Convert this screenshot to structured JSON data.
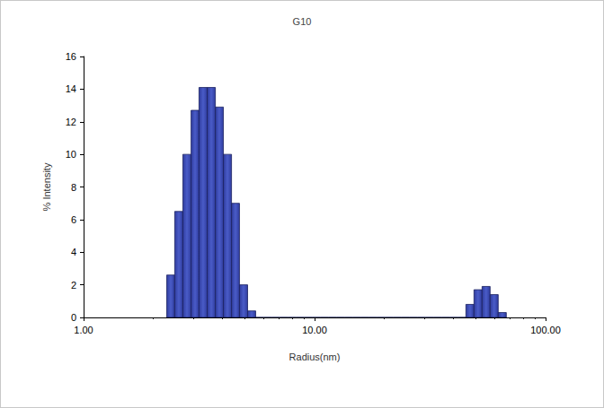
{
  "chart_data": {
    "type": "histogram",
    "title": "G10",
    "x_label": "Radius(nm)",
    "y_label": "% Intensity",
    "log": "x",
    "grid": false,
    "color": "#2f3c9e",
    "bins": [
      2.29,
      2.48,
      2.69,
      2.92,
      3.16,
      3.43,
      3.72,
      4.03,
      4.37,
      4.73,
      5.13,
      5.56,
      6.03,
      6.53,
      7.08,
      7.67,
      8.32,
      9.02,
      9.77,
      10.59,
      11.48,
      12.45,
      13.49,
      14.62,
      15.85,
      17.18,
      18.62,
      20.18,
      21.88,
      23.71,
      25.7,
      27.86,
      30.2,
      32.73,
      35.48,
      38.46,
      41.69,
      45.19,
      48.98,
      53.09,
      57.54,
      62.37,
      67.61
    ],
    "values": [
      2.6,
      6.5,
      10,
      12.7,
      14.1,
      14.1,
      12.9,
      10,
      7,
      2,
      0.4,
      0,
      0,
      0,
      0,
      0,
      0,
      0,
      0,
      0,
      0,
      0,
      0,
      0,
      0,
      0,
      0,
      0,
      0,
      0,
      0,
      0,
      0,
      0,
      0,
      0,
      0,
      0.8,
      1.7,
      1.9,
      1.4,
      0.3
    ],
    "xlim": [
      1,
      100
    ],
    "xticks": [
      {
        "value": 1,
        "label": "1.00"
      },
      {
        "value": 10,
        "label": "10.00"
      },
      {
        "value": 100,
        "label": "100.00"
      }
    ],
    "ylim": [
      0,
      16
    ],
    "yticks": [
      0,
      2,
      4,
      6,
      8,
      10,
      12,
      14,
      16
    ]
  }
}
